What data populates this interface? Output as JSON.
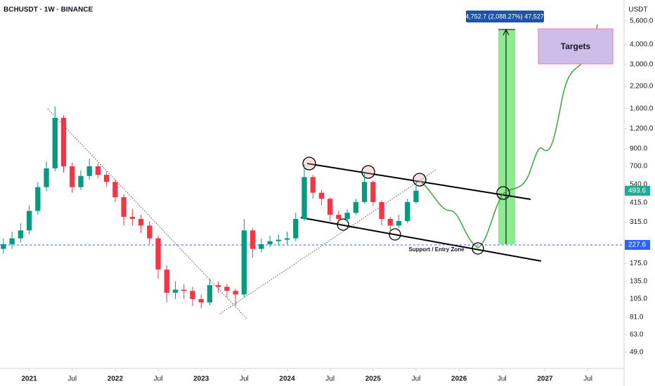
{
  "chart_data": {
    "type": "candlestick",
    "title": "BCHUSDT · 1W · BINANCE",
    "y_axis_label": "USDT",
    "log_scale": true,
    "up_color": "#089981",
    "down_color": "#f23645",
    "x": [
      2020.7,
      2020.8,
      2020.9,
      2021.0,
      2021.1,
      2021.2,
      2021.3,
      2021.4,
      2021.5,
      2021.6,
      2021.7,
      2021.8,
      2021.9,
      2022.0,
      2022.1,
      2022.2,
      2022.3,
      2022.4,
      2022.5,
      2022.6,
      2022.7,
      2022.8,
      2022.9,
      2023.0,
      2023.1,
      2023.2,
      2023.3,
      2023.4,
      2023.5,
      2023.6,
      2023.7,
      2023.8,
      2023.9,
      2024.0,
      2024.1,
      2024.2,
      2024.3,
      2024.4,
      2024.5,
      2024.6,
      2024.7,
      2024.8,
      2024.9,
      2025.0,
      2025.1,
      2025.2,
      2025.3,
      2025.4,
      2025.5
    ],
    "open": [
      215,
      230,
      250,
      280,
      370,
      520,
      680,
      1400,
      700,
      520,
      610,
      700,
      620,
      560,
      450,
      340,
      330,
      300,
      250,
      160,
      115,
      120,
      118,
      105,
      100,
      128,
      125,
      118,
      112,
      280,
      215,
      230,
      240,
      245,
      250,
      330,
      600,
      480,
      440,
      350,
      330,
      360,
      420,
      560,
      420,
      330,
      300,
      320,
      420
    ],
    "high": [
      250,
      275,
      310,
      400,
      560,
      750,
      1650,
      1450,
      740,
      660,
      780,
      730,
      650,
      580,
      470,
      380,
      350,
      320,
      260,
      170,
      135,
      130,
      125,
      112,
      140,
      135,
      130,
      122,
      330,
      290,
      250,
      260,
      265,
      275,
      360,
      720,
      620,
      500,
      450,
      370,
      380,
      440,
      640,
      570,
      430,
      340,
      350,
      440,
      560
    ],
    "low": [
      200,
      215,
      235,
      265,
      350,
      490,
      650,
      640,
      480,
      500,
      580,
      590,
      520,
      420,
      300,
      300,
      270,
      230,
      140,
      100,
      105,
      105,
      95,
      92,
      96,
      115,
      108,
      95,
      108,
      190,
      205,
      220,
      225,
      230,
      240,
      320,
      440,
      400,
      320,
      300,
      320,
      350,
      410,
      400,
      300,
      270,
      290,
      310,
      410
    ],
    "close": [
      230,
      250,
      280,
      370,
      520,
      680,
      1400,
      700,
      520,
      610,
      700,
      620,
      560,
      450,
      340,
      330,
      300,
      250,
      160,
      115,
      120,
      118,
      105,
      100,
      128,
      125,
      118,
      112,
      280,
      215,
      230,
      240,
      245,
      250,
      330,
      600,
      480,
      440,
      350,
      330,
      360,
      420,
      560,
      420,
      330,
      300,
      320,
      420,
      494
    ],
    "xlim": [
      2020.66,
      2027.92
    ],
    "xticks": [
      2021,
      {
        "value": 2021.5,
        "label": "Jul"
      },
      2022,
      {
        "value": 2022.5,
        "label": "Jul"
      },
      2023,
      {
        "value": 2023.5,
        "label": "Jul"
      },
      2024,
      {
        "value": 2024.5,
        "label": "Jul"
      },
      2025,
      {
        "value": 2025.5,
        "label": "Jul"
      },
      2026,
      {
        "value": 2026.5,
        "label": "Jul"
      },
      2027,
      {
        "value": 2027.5,
        "label": "Jul"
      }
    ],
    "ylim": [
      38.9,
      7550
    ],
    "yticks": [
      {
        "value": 49,
        "label": "49.0"
      },
      {
        "value": 63,
        "label": "63.0"
      },
      {
        "value": 81,
        "label": "81.0"
      },
      {
        "value": 105,
        "label": "105.0"
      },
      {
        "value": 135,
        "label": "135.0"
      },
      {
        "value": 175,
        "label": "175.0"
      },
      {
        "value": 315,
        "label": "315.0"
      },
      {
        "value": 415,
        "label": "415.0"
      },
      {
        "value": 540,
        "label": "540.0"
      },
      {
        "value": 700,
        "label": "700.0"
      },
      {
        "value": 900,
        "label": "900.0"
      },
      {
        "value": 1200,
        "label": "1,200.0"
      },
      {
        "value": 1600,
        "label": "1,600.0"
      },
      {
        "value": 2200,
        "label": "2,200.0"
      },
      {
        "value": 3000,
        "label": "3,000.0"
      },
      {
        "value": 4000,
        "label": "4,000.0"
      },
      {
        "value": 5600,
        "label": "5,600.0"
      }
    ],
    "current_price": 493.6,
    "support_price": 227.6,
    "annotations": {
      "targets": "Targets",
      "support": "Support / Entry Zone",
      "measure": "4,752.7 (2,088.27%) 47,527"
    }
  }
}
